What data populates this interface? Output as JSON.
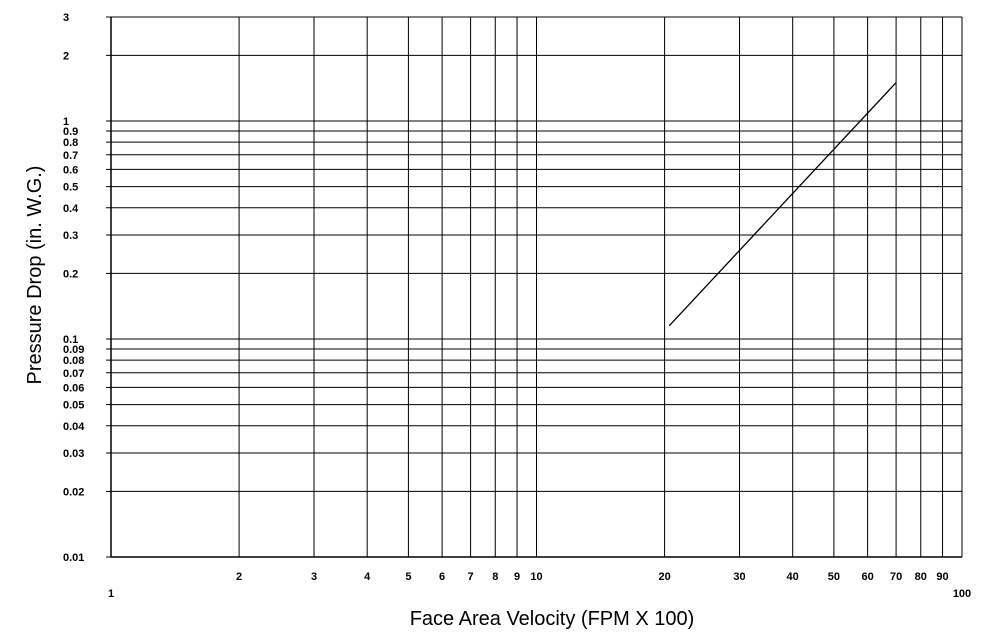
{
  "chart_data": {
    "type": "line",
    "xlabel": "Face Area Velocity (FPM X 100)",
    "ylabel": "Pressure Drop (in. W.G.)",
    "xscale": "log",
    "yscale": "log",
    "xlim": [
      1,
      100
    ],
    "ylim": [
      0.01,
      3
    ],
    "grid": true,
    "x_ticks": [
      1,
      2,
      3,
      4,
      5,
      6,
      7,
      8,
      9,
      10,
      20,
      30,
      40,
      50,
      60,
      70,
      80,
      90,
      100
    ],
    "x_tick_labels": [
      "1",
      "2",
      "3",
      "4",
      "5",
      "6",
      "7",
      "8",
      "9",
      "10",
      "20",
      "30",
      "40",
      "50",
      "60",
      "70",
      "80",
      "90",
      "100"
    ],
    "y_ticks": [
      0.01,
      0.02,
      0.03,
      0.04,
      0.05,
      0.06,
      0.07,
      0.08,
      0.09,
      0.1,
      0.2,
      0.3,
      0.4,
      0.5,
      0.6,
      0.7,
      0.8,
      0.9,
      1,
      2,
      3
    ],
    "y_tick_labels": [
      "0.01",
      "0.02",
      "0.03",
      "0.04",
      "0.05",
      "0.06",
      "0.07",
      "0.08",
      "0.09",
      "0.1",
      "0.2",
      "0.3",
      "0.4",
      "0.5",
      "0.6",
      "0.7",
      "0.8",
      "0.9",
      "1",
      "2",
      "3"
    ],
    "series": [
      {
        "x": [
          20.5,
          70
        ],
        "y": [
          0.115,
          1.5
        ]
      }
    ]
  }
}
